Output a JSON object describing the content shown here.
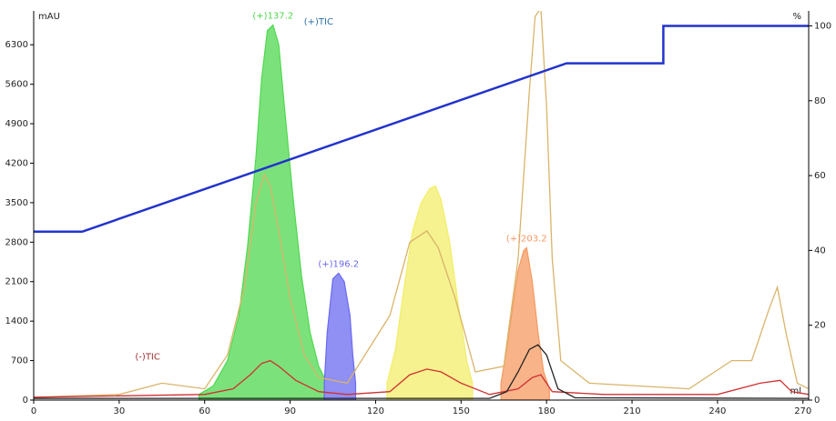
{
  "chart_data": {
    "type": "chromatogram",
    "xlabel": "ml",
    "ylabel": "mAU",
    "y2label": "%",
    "xlim": [
      0,
      272
    ],
    "xticks": [
      0,
      30,
      60,
      90,
      120,
      150,
      180,
      210,
      240,
      270
    ],
    "ylim": [
      0,
      6900
    ],
    "yticks": [
      0,
      700,
      1400,
      2100,
      2800,
      3500,
      4200,
      4900,
      5600,
      6300
    ],
    "y2lim": [
      0,
      104
    ],
    "y2ticks": [
      0,
      20,
      40,
      60,
      80,
      100
    ],
    "annotations": [
      "(+)TIC",
      "(-)TIC"
    ],
    "series": [
      {
        "name": "(+)137.2",
        "color": "#4fd84f",
        "fill": true,
        "x": [
          58,
          63,
          68,
          72,
          75,
          78,
          80,
          82,
          84,
          86,
          88,
          91,
          94,
          97,
          100,
          102
        ],
        "values": [
          100,
          250,
          700,
          1500,
          2700,
          4300,
          5700,
          6550,
          6650,
          6300,
          5200,
          3600,
          2200,
          1200,
          600,
          400
        ]
      },
      {
        "name": "(+)196.2",
        "color": "#6a6af0",
        "fill": true,
        "x": [
          102,
          103,
          105,
          107,
          109,
          111,
          112,
          113
        ],
        "values": [
          300,
          1200,
          2150,
          2250,
          2100,
          1500,
          800,
          300
        ]
      },
      {
        "color": "#f2ee6a",
        "fill": true,
        "x": [
          124,
          127,
          130,
          133,
          136,
          139,
          141,
          143,
          146,
          149,
          152,
          154
        ],
        "values": [
          300,
          900,
          2000,
          3000,
          3500,
          3750,
          3800,
          3550,
          2800,
          1700,
          700,
          300
        ]
      },
      {
        "name": "(+)203.2",
        "color": "#f59a62",
        "fill": true,
        "x": [
          164,
          166,
          168,
          170,
          172,
          173,
          175,
          177,
          179,
          181
        ],
        "values": [
          300,
          900,
          1600,
          2300,
          2650,
          2700,
          2100,
          1200,
          500,
          200
        ]
      },
      {
        "color": "#d9b46a",
        "fill": false,
        "x": [
          0,
          30,
          45,
          60,
          68,
          74,
          78,
          81,
          83,
          86,
          90,
          95,
          100,
          110,
          125,
          132,
          138,
          142,
          148,
          155,
          165,
          170,
          174,
          176,
          178,
          180,
          182,
          185,
          195,
          230,
          245,
          252,
          258,
          261,
          264,
          268,
          272
        ],
        "values": [
          50,
          100,
          300,
          200,
          800,
          2000,
          3500,
          4000,
          3800,
          3000,
          1800,
          800,
          400,
          300,
          1500,
          2800,
          3000,
          2700,
          1800,
          500,
          600,
          2500,
          5500,
          6800,
          6950,
          5200,
          2500,
          700,
          300,
          200,
          700,
          700,
          1600,
          2000,
          1200,
          300,
          200
        ]
      },
      {
        "color": "#d03030",
        "fill": false,
        "x": [
          0,
          60,
          70,
          76,
          80,
          83,
          86,
          92,
          100,
          110,
          125,
          132,
          138,
          143,
          150,
          160,
          170,
          175,
          178,
          182,
          200,
          240,
          255,
          262,
          266,
          272
        ],
        "values": [
          50,
          100,
          200,
          450,
          650,
          700,
          600,
          350,
          150,
          100,
          150,
          450,
          550,
          500,
          300,
          100,
          200,
          400,
          450,
          150,
          100,
          100,
          300,
          350,
          150,
          100
        ]
      },
      {
        "color": "#222222",
        "fill": false,
        "x": [
          0,
          160,
          166,
          170,
          174,
          177,
          180,
          184,
          190,
          272
        ],
        "values": [
          30,
          30,
          150,
          500,
          900,
          980,
          800,
          200,
          40,
          30
        ]
      },
      {
        "color": "#2233cc",
        "fill": false,
        "axis": "y2",
        "x": [
          0,
          17,
          187,
          221,
          221,
          272
        ],
        "values": [
          45,
          45,
          90,
          90,
          100,
          100
        ]
      }
    ]
  }
}
